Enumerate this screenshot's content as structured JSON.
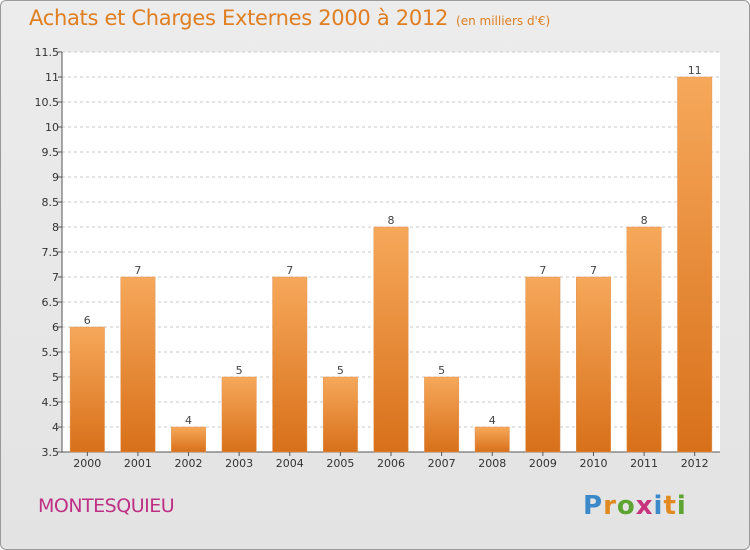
{
  "header": {
    "title": "Achats et Charges Externes 2000 à 2012",
    "subtitle": "(en milliers d'€)"
  },
  "footer": {
    "city": "MONTESQUIEU",
    "logo_letters": [
      "P",
      "r",
      "o",
      "x",
      "i",
      "t",
      "i"
    ]
  },
  "colors": {
    "title": "#e07e20",
    "city": "#bf2f86",
    "bar_top": "#f6a85a",
    "bar_bottom": "#d8701a",
    "grid": "#c8c8c8",
    "plot_bg": "#ffffff"
  },
  "chart_data": {
    "type": "bar",
    "title": "Achats et Charges Externes 2000 à 2012",
    "subtitle": "(en milliers d'€)",
    "categories": [
      "2000",
      "2001",
      "2002",
      "2003",
      "2004",
      "2005",
      "2006",
      "2007",
      "2008",
      "2009",
      "2010",
      "2011",
      "2012"
    ],
    "values": [
      6,
      7,
      4,
      5,
      7,
      5,
      8,
      5,
      4,
      7,
      7,
      8,
      11
    ],
    "data_labels": [
      "6",
      "7",
      "4",
      "5",
      "7",
      "5",
      "8",
      "5",
      "4",
      "7",
      "7",
      "8",
      "11"
    ],
    "ylim": [
      3.5,
      11.5
    ],
    "yticks": [
      "3.5",
      "4",
      "4.5",
      "5",
      "5.5",
      "6",
      "6.5",
      "7",
      "7.5",
      "8",
      "8.5",
      "9",
      "9.5",
      "10",
      "10.5",
      "11",
      "11.5"
    ],
    "grid": true,
    "legend": "none"
  }
}
